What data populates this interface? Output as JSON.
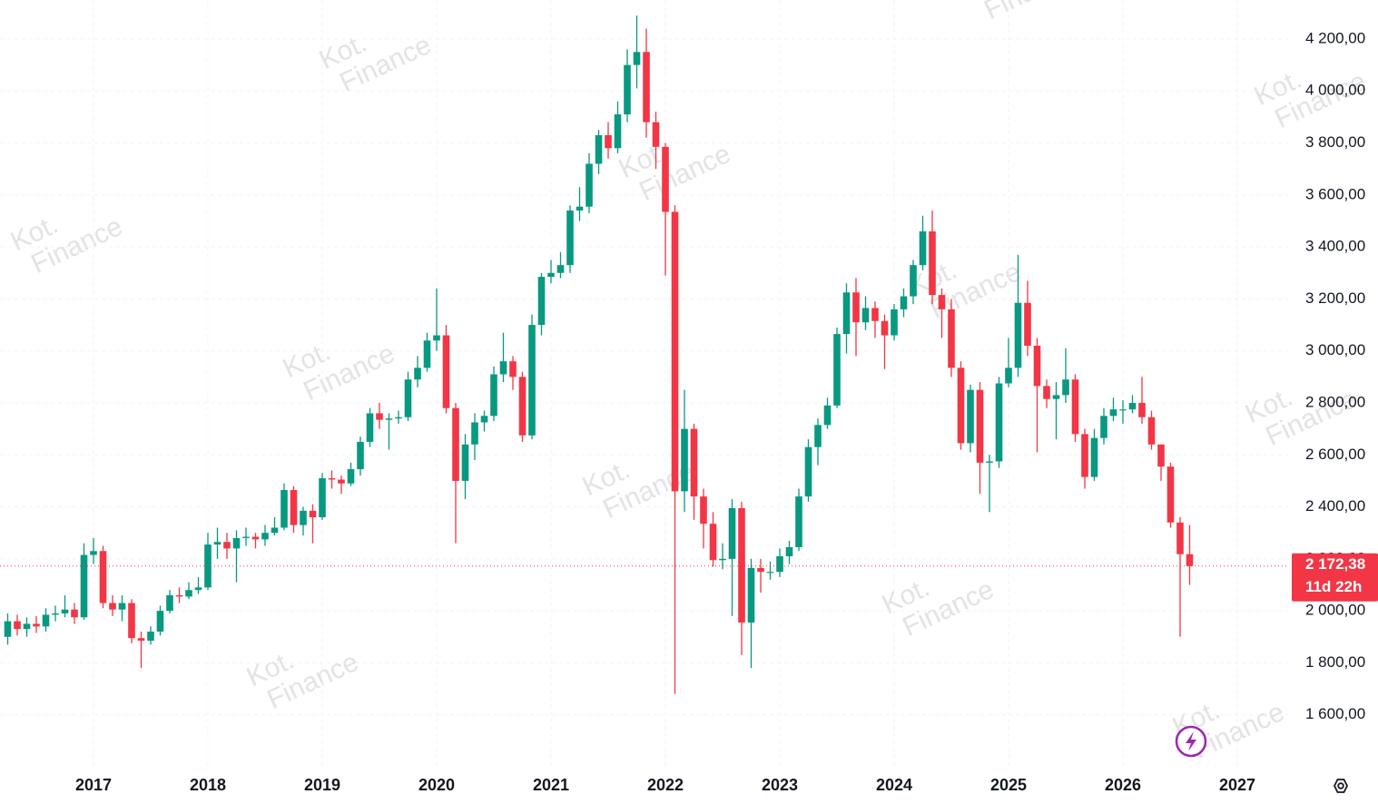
{
  "chart_data": {
    "type": "candlestick",
    "up_color": "#089981",
    "down_color": "#f23645",
    "grid": true,
    "ylim": [
      1400,
      4350
    ],
    "yticks": [
      {
        "value": 1600,
        "label": "1 600,00"
      },
      {
        "value": 1800,
        "label": "1 800,00"
      },
      {
        "value": 2000,
        "label": "2 000,00"
      },
      {
        "value": 2200,
        "label": "2 200,00"
      },
      {
        "value": 2400,
        "label": "2 400,00"
      },
      {
        "value": 2600,
        "label": "2 600,00"
      },
      {
        "value": 2800,
        "label": "2 800,00"
      },
      {
        "value": 3000,
        "label": "3 000,00"
      },
      {
        "value": 3200,
        "label": "3 200,00"
      },
      {
        "value": 3400,
        "label": "3 400,00"
      },
      {
        "value": 3600,
        "label": "3 600,00"
      },
      {
        "value": 3800,
        "label": "3 800,00"
      },
      {
        "value": 4000,
        "label": "4 000,00"
      },
      {
        "value": 4200,
        "label": "4 200,00"
      }
    ],
    "categories": [
      null,
      null,
      null,
      null,
      null,
      null,
      null,
      null,
      null,
      "2017",
      null,
      null,
      null,
      null,
      null,
      null,
      null,
      null,
      null,
      null,
      null,
      "2018",
      null,
      null,
      null,
      null,
      null,
      null,
      null,
      null,
      null,
      null,
      null,
      "2019",
      null,
      null,
      null,
      null,
      null,
      null,
      null,
      null,
      null,
      null,
      null,
      "2020",
      null,
      null,
      null,
      null,
      null,
      null,
      null,
      null,
      null,
      null,
      null,
      "2021",
      null,
      null,
      null,
      null,
      null,
      null,
      null,
      null,
      null,
      null,
      null,
      "2022",
      null,
      null,
      null,
      null,
      null,
      null,
      null,
      null,
      null,
      null,
      null,
      "2023",
      null,
      null,
      null,
      null,
      null,
      null,
      null,
      null,
      null,
      null,
      null,
      "2024",
      null,
      null,
      null,
      null,
      null,
      null,
      null,
      null,
      null,
      null,
      null,
      "2025",
      null,
      null,
      null,
      null,
      null,
      null,
      null,
      null,
      null,
      null,
      null,
      "2026",
      null,
      null,
      null,
      null,
      null,
      null,
      null,
      null,
      null,
      null,
      null,
      "2027"
    ],
    "open": [
      1900,
      1960,
      1930,
      1950,
      1940,
      1985,
      1990,
      2005,
      1975,
      2215,
      2230,
      2030,
      2005,
      2030,
      1895,
      1885,
      1920,
      2000,
      2060,
      2055,
      2080,
      2090,
      2255,
      2265,
      2240,
      2280,
      2285,
      2275,
      2300,
      2320,
      2465,
      2330,
      2385,
      2360,
      2510,
      2505,
      2490,
      2545,
      2650,
      2760,
      2735,
      2740,
      2745,
      2890,
      2935,
      3040,
      3060,
      2780,
      2500,
      2640,
      2725,
      2750,
      2910,
      2960,
      2900,
      2675,
      3100,
      3285,
      3300,
      3330,
      3540,
      3555,
      3720,
      3830,
      3780,
      3910,
      4100,
      4150,
      3880,
      3785,
      3535,
      2460,
      2700,
      2440,
      2335,
      2195,
      2200,
      2395,
      1955,
      2165,
      2150,
      2150,
      2210,
      2245,
      2440,
      2630,
      2715,
      2790,
      3065,
      3225,
      3110,
      3165,
      3115,
      3060,
      3160,
      3210,
      3330,
      3460,
      3215,
      3160,
      2935,
      2645,
      2850,
      2570,
      2575,
      2875,
      2935,
      3185,
      3020,
      2865,
      2815,
      2830,
      2890,
      2680,
      2515,
      2665,
      2750,
      2775,
      2775,
      2800,
      2745,
      2640,
      2555,
      2340,
      2218,
      null,
      null,
      null,
      null,
      null
    ],
    "high": [
      1990,
      1985,
      1975,
      1980,
      2010,
      2020,
      2060,
      2030,
      2260,
      2280,
      2250,
      2060,
      2060,
      2045,
      1920,
      1940,
      2020,
      2080,
      2090,
      2110,
      2130,
      2300,
      2320,
      2300,
      2310,
      2320,
      2300,
      2330,
      2360,
      2490,
      2480,
      2400,
      2410,
      2530,
      2540,
      2520,
      2570,
      2670,
      2780,
      2800,
      2760,
      2770,
      2920,
      2980,
      3070,
      3240,
      3100,
      2800,
      2680,
      2760,
      2770,
      2940,
      3070,
      2980,
      2920,
      3140,
      3300,
      3350,
      3380,
      3560,
      3630,
      3760,
      3850,
      3880,
      3960,
      4160,
      4290,
      4240,
      3920,
      3800,
      3560,
      2850,
      2720,
      2470,
      2380,
      2260,
      2430,
      2420,
      2200,
      2200,
      2190,
      2240,
      2270,
      2470,
      2660,
      2740,
      2820,
      3090,
      3260,
      3280,
      3210,
      3190,
      3140,
      3180,
      3240,
      3350,
      3520,
      3540,
      3240,
      3200,
      2960,
      2870,
      2880,
      2600,
      2900,
      3050,
      3370,
      3270,
      3050,
      2890,
      2880,
      3010,
      2910,
      2700,
      2700,
      2780,
      2820,
      2810,
      2830,
      2900,
      2770,
      2640,
      2570,
      2360,
      2330,
      null,
      null,
      null,
      null,
      null
    ],
    "low": [
      1870,
      1905,
      1900,
      1915,
      1920,
      1960,
      1975,
      1950,
      1965,
      2180,
      2010,
      1980,
      1960,
      1875,
      1780,
      1870,
      1905,
      1990,
      2030,
      2045,
      2065,
      2080,
      2200,
      2200,
      2110,
      2250,
      2240,
      2250,
      2290,
      2310,
      2300,
      2290,
      2260,
      2350,
      2470,
      2450,
      2480,
      2520,
      2630,
      2700,
      2620,
      2720,
      2730,
      2860,
      2920,
      3000,
      2760,
      2260,
      2430,
      2580,
      2690,
      2730,
      2880,
      2850,
      2650,
      2660,
      3060,
      3260,
      3280,
      3300,
      3500,
      3530,
      3680,
      3740,
      3760,
      3880,
      4010,
      3820,
      3700,
      3290,
      1680,
      2380,
      2350,
      2240,
      2170,
      2160,
      1980,
      1830,
      1780,
      2070,
      2120,
      2130,
      2180,
      2230,
      2420,
      2560,
      2700,
      2780,
      2990,
      2980,
      3080,
      3050,
      2930,
      3040,
      3130,
      3180,
      3310,
      3180,
      3050,
      2900,
      2620,
      2610,
      2450,
      2380,
      2550,
      2860,
      2900,
      2980,
      2610,
      2780,
      2660,
      2800,
      2650,
      2470,
      2500,
      2640,
      2730,
      2720,
      2760,
      2720,
      2620,
      2500,
      2320,
      1900,
      2100,
      null,
      null,
      null,
      null,
      null
    ],
    "close": [
      1960,
      1930,
      1950,
      1940,
      1985,
      1990,
      2005,
      1975,
      2215,
      2230,
      2030,
      2005,
      2030,
      1895,
      1885,
      1920,
      2000,
      2060,
      2055,
      2080,
      2090,
      2255,
      2265,
      2240,
      2280,
      2285,
      2275,
      2300,
      2320,
      2465,
      2330,
      2385,
      2360,
      2510,
      2505,
      2490,
      2545,
      2650,
      2760,
      2735,
      2740,
      2745,
      2890,
      2935,
      3040,
      3060,
      2780,
      2500,
      2640,
      2725,
      2750,
      2910,
      2960,
      2900,
      2675,
      3100,
      3285,
      3300,
      3330,
      3540,
      3555,
      3720,
      3830,
      3780,
      3910,
      4100,
      4150,
      3880,
      3785,
      3535,
      2460,
      2700,
      2440,
      2335,
      2195,
      2200,
      2395,
      1955,
      2165,
      2150,
      2150,
      2210,
      2245,
      2440,
      2630,
      2715,
      2790,
      3065,
      3225,
      3110,
      3165,
      3115,
      3060,
      3160,
      3210,
      3330,
      3460,
      3215,
      3160,
      2935,
      2645,
      2850,
      2570,
      2575,
      2875,
      2935,
      3185,
      3020,
      2865,
      2815,
      2830,
      2890,
      2680,
      2515,
      2665,
      2750,
      2775,
      2775,
      2800,
      2745,
      2640,
      2555,
      2340,
      2218,
      2172.38,
      null,
      null,
      null,
      null,
      null
    ],
    "last_label": "2 172,38",
    "countdown": "11d 22h",
    "watermark": [
      "Kot.",
      "Finance"
    ]
  }
}
